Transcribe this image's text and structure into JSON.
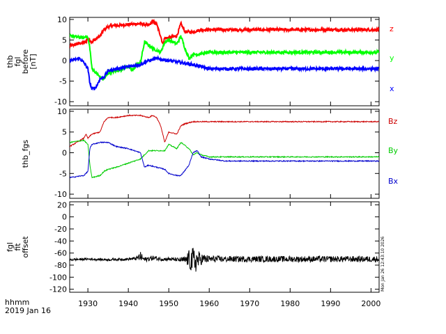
{
  "figure": {
    "x_axis": {
      "range": [
        1925.5,
        2002
      ],
      "ticks": [
        1930,
        1940,
        1950,
        1960,
        1970,
        1980,
        1990,
        2000
      ],
      "tick_labels": [
        "1930",
        "1940",
        "1950",
        "1960",
        "1970",
        "1980",
        "1990",
        "2000"
      ],
      "unit_label": "hhmm",
      "date_label": "2019 Jan 16"
    },
    "timestamp": "Mon Jan 26 12:43:10 2026"
  },
  "chart_data": [
    {
      "type": "line",
      "panel": "top",
      "ylabel_lines": [
        "thb",
        "fgl",
        "before",
        "[nT]"
      ],
      "ylim": [
        -11,
        10.5
      ],
      "yticks": [
        -10,
        -5,
        0,
        5,
        10
      ],
      "ytick_labels": [
        "-10",
        "-5",
        "0",
        "5",
        "10"
      ],
      "noise": 0.35,
      "line_width": 2,
      "series": [
        {
          "name": "z",
          "color": "#ff0000",
          "x": [
            1925.5,
            1928,
            1929.5,
            1930,
            1931,
            1933,
            1934,
            1935,
            1936,
            1937,
            1940,
            1943,
            1945,
            1946,
            1947,
            1948,
            1948.5,
            1949,
            1950,
            1952,
            1953,
            1954,
            1956,
            1958,
            1960,
            1964,
            1970,
            1975,
            1980,
            1990,
            1995,
            2000,
            2002
          ],
          "values": [
            3.5,
            4.2,
            4.5,
            5.5,
            4.5,
            6,
            7.5,
            8.2,
            8.5,
            8.5,
            8.8,
            9,
            8.5,
            9.5,
            8.8,
            6,
            4,
            5.5,
            5.5,
            6,
            9,
            7,
            7,
            7.5,
            7.5,
            7.5,
            7.5,
            7.5,
            7.5,
            7.5,
            7.5,
            7.5,
            7.5
          ]
        },
        {
          "name": "y",
          "color": "#00ff00",
          "x": [
            1925.5,
            1929,
            1929.5,
            1930,
            1930.5,
            1931,
            1933,
            1934,
            1935,
            1937,
            1940,
            1941,
            1942,
            1943,
            1944,
            1946,
            1948,
            1949,
            1950,
            1952,
            1953,
            1954,
            1955,
            1956,
            1957,
            1960,
            1964,
            1970,
            1975,
            1980,
            1990,
            1995,
            2000,
            2002
          ],
          "values": [
            6,
            5.5,
            6,
            5.5,
            3,
            -2,
            -4,
            -4.5,
            -3,
            -2.5,
            -1.5,
            -2.5,
            -1,
            -0.5,
            4.5,
            3,
            2,
            4.5,
            5,
            4,
            6,
            3,
            0.5,
            1.5,
            1.5,
            2,
            2,
            2,
            2,
            2,
            2,
            2,
            2,
            2
          ]
        },
        {
          "name": "x",
          "color": "#0000ff",
          "x": [
            1925.5,
            1928,
            1929,
            1930,
            1930.5,
            1931,
            1932,
            1933,
            1934,
            1935,
            1937,
            1940,
            1943,
            1945,
            1947,
            1950,
            1953,
            1956,
            1960,
            1964,
            1970,
            1975,
            1980,
            1990,
            1995,
            2000,
            2002
          ],
          "values": [
            0,
            0.5,
            -0.5,
            -2,
            -5.5,
            -7,
            -6.5,
            -4.5,
            -4,
            -2.5,
            -2,
            -1.5,
            -1,
            0,
            0.5,
            0,
            -0.5,
            -1,
            -2,
            -2,
            -2,
            -2,
            -2,
            -2,
            -2,
            -2,
            -2
          ]
        }
      ],
      "legend": [
        {
          "label": "z",
          "color": "#ff0000"
        },
        {
          "label": "y",
          "color": "#00ff00"
        },
        {
          "label": "x",
          "color": "#0000ff"
        }
      ]
    },
    {
      "type": "line",
      "panel": "middle",
      "ylabel_lines": [
        "thb_fgs"
      ],
      "ylim": [
        -11,
        10.5
      ],
      "yticks": [
        -10,
        -5,
        0,
        5,
        10
      ],
      "ytick_labels": [
        "-10",
        "-5",
        "0",
        "5",
        "10"
      ],
      "noise": 0.12,
      "line_width": 1,
      "series": [
        {
          "name": "Bz",
          "color": "#cc0000",
          "x": [
            1925.5,
            1929,
            1929.5,
            1930,
            1931,
            1933,
            1934,
            1935,
            1937,
            1940,
            1943,
            1945,
            1946,
            1947,
            1948,
            1949,
            1950,
            1952,
            1953,
            1954,
            1956,
            1958,
            1960,
            1964,
            1970,
            1975,
            1980,
            1990,
            1995,
            2000,
            2002
          ],
          "values": [
            1.5,
            3.5,
            4.5,
            3.5,
            4.5,
            5,
            7.5,
            8.5,
            8.5,
            9,
            9,
            8.5,
            9,
            8.5,
            6.5,
            2.5,
            5,
            4.5,
            6.5,
            7,
            7.5,
            7.5,
            7.5,
            7.5,
            7.5,
            7.5,
            7.5,
            7.5,
            7.5,
            7.5,
            7.5
          ]
        },
        {
          "name": "By",
          "color": "#00cc00",
          "x": [
            1925.5,
            1929,
            1930,
            1930.5,
            1931,
            1933,
            1934,
            1935,
            1937,
            1940,
            1943,
            1945,
            1947,
            1949,
            1950,
            1952,
            1953,
            1955,
            1956,
            1957,
            1958,
            1960,
            1964,
            1970,
            1975,
            1980,
            1990,
            1995,
            2000,
            2002
          ],
          "values": [
            2.5,
            3,
            2,
            -3,
            -6,
            -5.5,
            -4.5,
            -4,
            -3.5,
            -2.5,
            -1.5,
            0.5,
            0.5,
            0.5,
            2,
            1,
            2.5,
            1,
            -0.5,
            0,
            -0.5,
            -1,
            -1,
            -1,
            -1,
            -1,
            -1,
            -1,
            -1,
            -1
          ]
        },
        {
          "name": "Bx",
          "color": "#0000cc",
          "x": [
            1925.5,
            1929,
            1930,
            1930.5,
            1931,
            1933,
            1935,
            1937,
            1940,
            1943,
            1944,
            1945,
            1947,
            1949,
            1950,
            1952,
            1953,
            1955,
            1956,
            1957,
            1958,
            1960,
            1964,
            1970,
            1975,
            1980,
            1990,
            1995,
            2000,
            2002
          ],
          "values": [
            -6,
            -5.5,
            -4.5,
            1,
            2,
            2.5,
            2.5,
            1.5,
            1,
            0,
            -3.5,
            -3,
            -3.5,
            -4,
            -5,
            -5.5,
            -5.5,
            -3,
            0,
            0.5,
            -1,
            -1.5,
            -2,
            -2,
            -2,
            -2,
            -2,
            -2,
            -2,
            -2
          ]
        }
      ],
      "legend": [
        {
          "label": "Bz",
          "color": "#cc0000"
        },
        {
          "label": "By",
          "color": "#00cc00"
        },
        {
          "label": "Bx",
          "color": "#0000cc"
        }
      ]
    },
    {
      "type": "line",
      "panel": "bottom",
      "ylabel_lines": [
        "fgl",
        "fit",
        "offset"
      ],
      "ylim": [
        -125,
        25
      ],
      "yticks": [
        -120,
        -100,
        -80,
        -60,
        -40,
        -20,
        0,
        20
      ],
      "ytick_labels": [
        "-120",
        "-100",
        "-80",
        "-60",
        "-40",
        "-20",
        "0",
        "20"
      ],
      "noise": 3,
      "line_width": 1,
      "series": [
        {
          "name": "offset",
          "color": "#000000",
          "x": [
            1925.5,
            1930,
            1935,
            1940,
            1942,
            1943,
            1944,
            1946,
            1948,
            1950,
            1952,
            1954,
            1955,
            1956,
            1957,
            1958,
            1960,
            1964,
            1970,
            1975,
            1980,
            1990,
            1995,
            2000,
            2002
          ],
          "values": [
            -71,
            -70,
            -71,
            -70,
            -69,
            -66,
            -71,
            -68,
            -70,
            -70,
            -71,
            -72,
            -70,
            -75,
            -72,
            -70,
            -70,
            -70,
            -70,
            -70,
            -70,
            -70,
            -70,
            -70,
            -70
          ],
          "noise_amplitude": [
            2,
            2,
            2,
            2,
            3,
            8,
            4,
            4,
            3,
            3,
            3,
            6,
            15,
            25,
            18,
            10,
            6,
            5,
            5,
            5,
            5,
            5,
            5,
            5,
            5
          ]
        }
      ],
      "legend": []
    }
  ]
}
